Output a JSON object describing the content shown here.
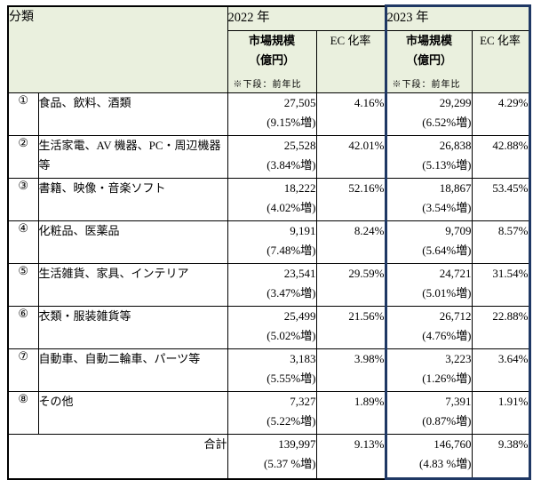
{
  "colors": {
    "header_bg": "#EAF0DE",
    "accent_border": "#1F3864",
    "separator_gray": "#747474"
  },
  "table": {
    "classification_label": "分類",
    "year_2022": "2022 年",
    "year_2023": "2023 年",
    "market_size_label": "市場規模",
    "market_size_unit": "（億円）",
    "market_size_note": "※下段：前年比",
    "ec_rate_label": "EC 化率",
    "rows": [
      {
        "no": "①",
        "category": "食品、飲料、酒類",
        "size_2022": "27,505",
        "yoy_2022": "(9.15%増)",
        "rate_2022": "4.16%",
        "size_2023": "29,299",
        "yoy_2023": "(6.52%増)",
        "rate_2023": "4.29%"
      },
      {
        "no": "②",
        "category": "生活家電、AV 機器、PC・周辺機器等",
        "size_2022": "25,528",
        "yoy_2022": "(3.84%増)",
        "rate_2022": "42.01%",
        "size_2023": "26,838",
        "yoy_2023": "(5.13%増)",
        "rate_2023": "42.88%"
      },
      {
        "no": "③",
        "category": "書籍、映像・音楽ソフト",
        "size_2022": "18,222",
        "yoy_2022": "(4.02%増)",
        "rate_2022": "52.16%",
        "size_2023": "18,867",
        "yoy_2023": "(3.54%増)",
        "rate_2023": "53.45%"
      },
      {
        "no": "④",
        "category": "化粧品、医薬品",
        "size_2022": "9,191",
        "yoy_2022": "(7.48%増)",
        "rate_2022": "8.24%",
        "size_2023": "9,709",
        "yoy_2023": "(5.64%増)",
        "rate_2023": "8.57%"
      },
      {
        "no": "⑤",
        "category": "生活雑貨、家具、インテリア",
        "size_2022": "23,541",
        "yoy_2022": "(3.47%増)",
        "rate_2022": "29.59%",
        "size_2023": "24,721",
        "yoy_2023": "(5.01%増)",
        "rate_2023": "31.54%"
      },
      {
        "no": "⑥",
        "category": "衣類・服装雑貨等",
        "size_2022": "25,499",
        "yoy_2022": "(5.02%増)",
        "rate_2022": "21.56%",
        "size_2023": "26,712",
        "yoy_2023": "(4.76%増)",
        "rate_2023": "22.88%"
      },
      {
        "no": "⑦",
        "category": "自動車、自動二輪車、パーツ等",
        "size_2022": "3,183",
        "yoy_2022": "(5.55%増)",
        "rate_2022": "3.98%",
        "size_2023": "3,223",
        "yoy_2023": "(1.26%増)",
        "rate_2023": "3.64%"
      },
      {
        "no": "⑧",
        "category": "その他",
        "size_2022": "7,327",
        "yoy_2022": "(5.22%増)",
        "rate_2022": "1.89%",
        "size_2023": "7,391",
        "yoy_2023": "(0.87%増)",
        "rate_2023": "1.91%"
      }
    ],
    "total": {
      "label": "合計",
      "size_2022": "139,997",
      "yoy_2022": "(5.37 %増)",
      "rate_2022": "9.13%",
      "size_2023": "146,760",
      "yoy_2023": "(4.83 %増)",
      "rate_2023": "9.38%"
    }
  }
}
